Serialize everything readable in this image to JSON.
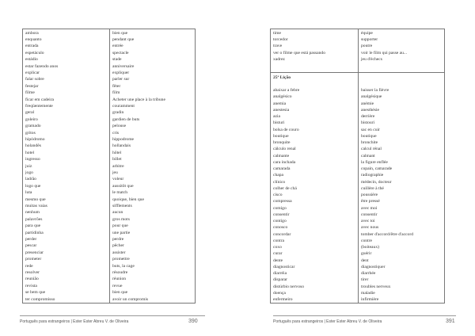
{
  "left_page": {
    "rows": [
      [
        "ambora",
        "bien que"
      ],
      [
        "enquanto",
        "pendant que"
      ],
      [
        "entrada",
        "entrée"
      ],
      [
        "espetáculo",
        "spectacle"
      ],
      [
        "estádio",
        "stade"
      ],
      [
        "estar fazendo anos",
        "anniversaire"
      ],
      [
        "explicar",
        "expliquer"
      ],
      [
        "falar sobre",
        "parler sur"
      ],
      [
        "festejar",
        "fêter"
      ],
      [
        "filme",
        "film"
      ],
      [
        "ficar em cadeira",
        "Acheter une place à la tribune"
      ],
      [
        "freqüentemente",
        "couramment"
      ],
      [
        "geral",
        "gradin"
      ],
      [
        "goleiro",
        "gardien de buts"
      ],
      [
        "gramado",
        "pelouse"
      ],
      [
        "gritos",
        "cris"
      ],
      [
        "hipódromo",
        "hippodrome"
      ],
      [
        "holandês",
        "hollandais"
      ],
      [
        "hotel",
        "hôtel"
      ],
      [
        "ingresso",
        "billet"
      ],
      [
        "juiz",
        "arbitre"
      ],
      [
        "jogo",
        "jeu"
      ],
      [
        "ladrão",
        "voleur"
      ],
      [
        "logo que",
        "aussitôt que"
      ],
      [
        "luta",
        "le match"
      ],
      [
        "mesmo que",
        "quoique, bien que"
      ],
      [
        "muitas vaias",
        "sifflements"
      ],
      [
        "nenhum",
        "aucun"
      ],
      [
        "palavrões",
        "gros mots"
      ],
      [
        "para que",
        "pour que"
      ],
      [
        "partidinha",
        "une partie"
      ],
      [
        "perder",
        "perdre"
      ],
      [
        "pescar",
        "pêcher"
      ],
      [
        "presenciar",
        "assister"
      ],
      [
        "prometer",
        "promettre"
      ],
      [
        "rede",
        "buts, la cage"
      ],
      [
        "resolver",
        "résoudre"
      ],
      [
        "reunião",
        "réunion"
      ],
      [
        "revista",
        "revue"
      ],
      [
        "se bem que",
        "bien que"
      ],
      [
        "ter compromisso",
        "avoir un compromis"
      ]
    ],
    "footer": "Português para estrangeiros | Ester Ester Abreu V. de Oliveira",
    "page_number": "390"
  },
  "right_page": {
    "top_rows": [
      [
        "time",
        "équipe"
      ],
      [
        "torcedor",
        "supporter"
      ],
      [
        "trave",
        "poutre"
      ],
      [
        "ver o filme que está passando",
        "voir le film qui passe au..."
      ],
      [
        "xadrez",
        "jeu d'échecs"
      ]
    ],
    "lesson_title": "25ª Lição",
    "rows": [
      [
        "abaixar a febre",
        "baisser la fièvre"
      ],
      [
        "analgésico",
        "analgésique"
      ],
      [
        "anemia",
        "anémie"
      ],
      [
        "anestesia",
        "anesthésie"
      ],
      [
        "azia",
        "derrière"
      ],
      [
        "bisturi",
        "bistouri"
      ],
      [
        "bolsa de couro",
        "sac en cuir"
      ],
      [
        "boutique",
        "boutique"
      ],
      [
        "bronquite",
        "bronchite"
      ],
      [
        "cálculo renal",
        "calcul rénal"
      ],
      [
        "calmante",
        "calmant"
      ],
      [
        "cara inchada",
        "la figure enflée"
      ],
      [
        "camarada",
        "copain, camarade"
      ],
      [
        "chapa",
        "radiographie"
      ],
      [
        "clínico",
        "médecin, docteur"
      ],
      [
        "colher de chá",
        "cuillère à thé"
      ],
      [
        "cisco",
        "poussière"
      ],
      [
        "compressa",
        "être pressé"
      ],
      [
        "comigo",
        "avec moi"
      ],
      [
        "consentir",
        "consentir"
      ],
      [
        "contigo",
        "avec toi"
      ],
      [
        "conosco",
        "avec nous"
      ],
      [
        "concordar",
        "tomber d'accord/être d'accord"
      ],
      [
        "contra",
        "contre"
      ],
      [
        "coxo",
        "(boiteaux)"
      ],
      [
        "curar",
        "guérir"
      ],
      [
        "dente",
        "dent"
      ],
      [
        "diagnosticar",
        "diagnostiquer"
      ],
      [
        "diarréia",
        "diarrhée"
      ],
      [
        "disparar",
        "tirer"
      ],
      [
        "distúrbio nervoso",
        "troubles nerveux"
      ],
      [
        "doença",
        "maladie"
      ],
      [
        "enfermeiro",
        "infirmière"
      ]
    ],
    "footer": "Português para estrangeiros | Ester Ester Abreu V. de Oliveira",
    "page_number": "391"
  }
}
